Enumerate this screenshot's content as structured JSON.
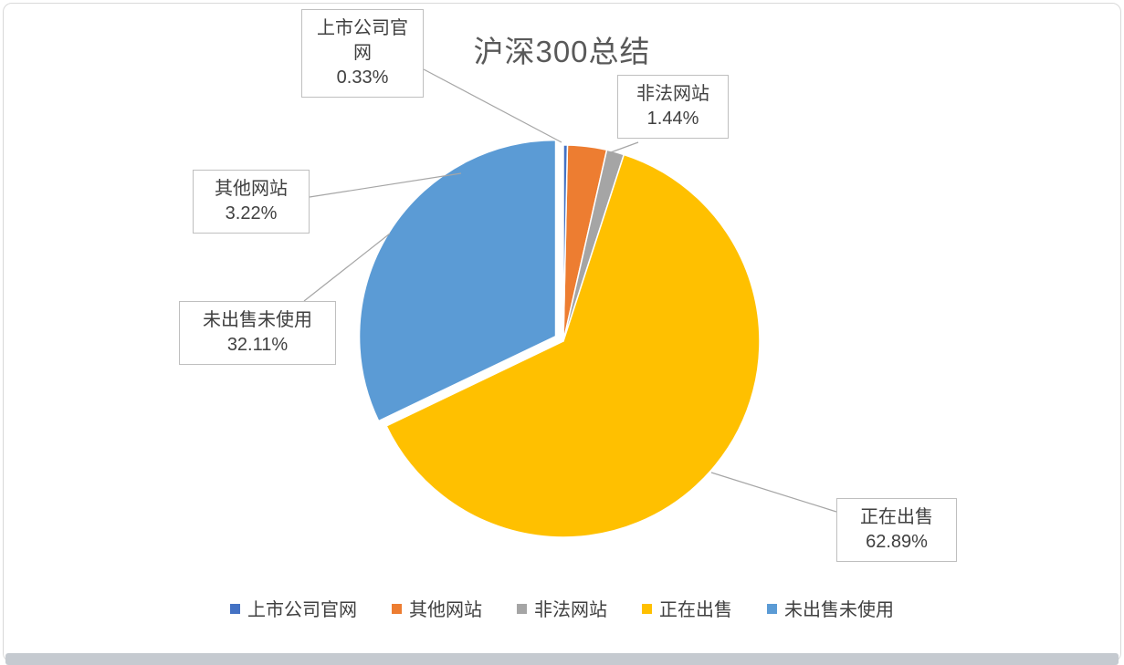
{
  "chart_data": {
    "type": "pie",
    "title": "沪深300总结",
    "categories": [
      "上市公司官网",
      "其他网站",
      "非法网站",
      "正在出售",
      "未出售未使用"
    ],
    "values": [
      0.33,
      3.22,
      1.44,
      62.89,
      32.11
    ],
    "slices": [
      {
        "label": "上市公司官网",
        "value": 0.33,
        "pct_label": "0.33%",
        "color": "#4472C4",
        "explode": 0
      },
      {
        "label": "其他网站",
        "value": 3.22,
        "pct_label": "3.22%",
        "color": "#ED7D31",
        "explode": 0
      },
      {
        "label": "非法网站",
        "value": 1.44,
        "pct_label": "1.44%",
        "color": "#A5A5A5",
        "explode": 0
      },
      {
        "label": "正在出售",
        "value": 62.89,
        "pct_label": "62.89%",
        "color": "#FFC000",
        "explode": 0
      },
      {
        "label": "未出售未使用",
        "value": 32.11,
        "pct_label": "32.11%",
        "color": "#5B9BD5",
        "explode": 10
      }
    ],
    "legend_position": "bottom",
    "start_angle_deg": 0,
    "direction": "clockwise",
    "title_color": "#595959",
    "label_color": "#404040",
    "leader_line_color": "#a6a6a6"
  }
}
